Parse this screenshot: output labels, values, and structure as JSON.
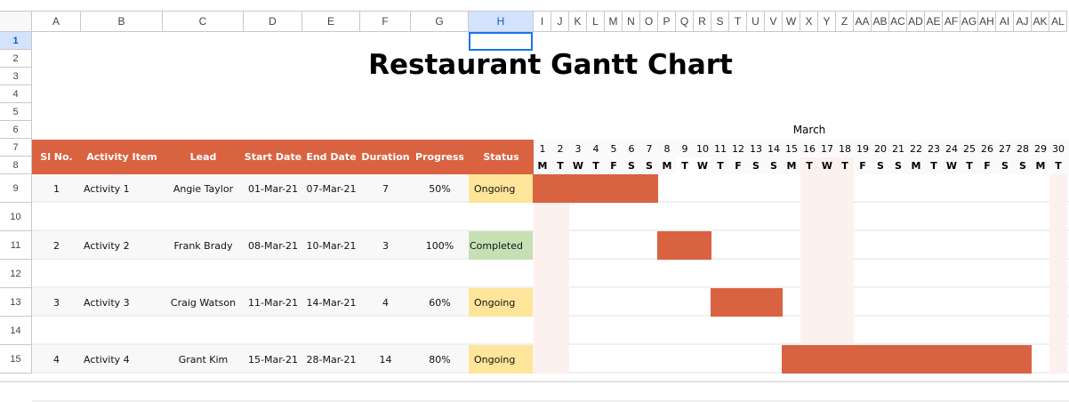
{
  "spreadsheet": {
    "columns": [
      "A",
      "B",
      "C",
      "D",
      "E",
      "F",
      "G",
      "H",
      "I",
      "J",
      "K",
      "L",
      "M",
      "N",
      "O",
      "P",
      "Q",
      "R",
      "S",
      "T",
      "U",
      "V",
      "W",
      "X",
      "Y",
      "Z",
      "AA",
      "AB",
      "AC",
      "AD",
      "AE",
      "AF",
      "AG",
      "AH",
      "AI",
      "AJ",
      "AK",
      "AL"
    ],
    "rows": [
      "1",
      "2",
      "3",
      "4",
      "5",
      "6",
      "7",
      "8",
      "9",
      "10",
      "11",
      "12",
      "13",
      "14",
      "15"
    ],
    "selected_cell": "H1"
  },
  "title": "Restaurant Gantt Chart",
  "month": "March",
  "headers": [
    "Sl No.",
    "Activity Item",
    "Lead",
    "Start Date",
    "End Date",
    "Duration",
    "Progress",
    "Status"
  ],
  "days": [
    "1",
    "2",
    "3",
    "4",
    "5",
    "6",
    "7",
    "8",
    "9",
    "10",
    "11",
    "12",
    "13",
    "14",
    "15",
    "16",
    "17",
    "18",
    "19",
    "20",
    "21",
    "22",
    "23",
    "24",
    "25",
    "26",
    "27",
    "28",
    "29",
    "30"
  ],
  "weekdays": [
    "M",
    "T",
    "W",
    "T",
    "F",
    "S",
    "S",
    "M",
    "T",
    "W",
    "T",
    "F",
    "S",
    "S",
    "M",
    "T",
    "W",
    "T",
    "F",
    "S",
    "S",
    "M",
    "T",
    "W",
    "T",
    "F",
    "S",
    "S",
    "M",
    "T"
  ],
  "activities": [
    {
      "no": "1",
      "item": "Activity 1",
      "lead": "Angie Taylor",
      "start": "01-Mar-21",
      "end": "07-Mar-21",
      "duration": "7",
      "progress": "50%",
      "status": "Ongoing",
      "start_day": 1
    },
    {
      "no": "2",
      "item": "Activity 2",
      "lead": "Frank Brady",
      "start": "08-Mar-21",
      "end": "10-Mar-21",
      "duration": "3",
      "progress": "100%",
      "status": "Completed",
      "start_day": 8
    },
    {
      "no": "3",
      "item": "Activity 3",
      "lead": "Craig Watson",
      "start": "11-Mar-21",
      "end": "14-Mar-21",
      "duration": "4",
      "progress": "60%",
      "status": "Ongoing",
      "start_day": 11
    },
    {
      "no": "4",
      "item": "Activity 4",
      "lead": "Grant Kim",
      "start": "15-Mar-21",
      "end": "28-Mar-21",
      "duration": "14",
      "progress": "80%",
      "status": "Ongoing",
      "start_day": 15
    }
  ],
  "colors": {
    "accent": "#d96240",
    "ongoing": "#ffe599",
    "completed": "#c6e0b4",
    "highlight": "#fdf1f0"
  }
}
